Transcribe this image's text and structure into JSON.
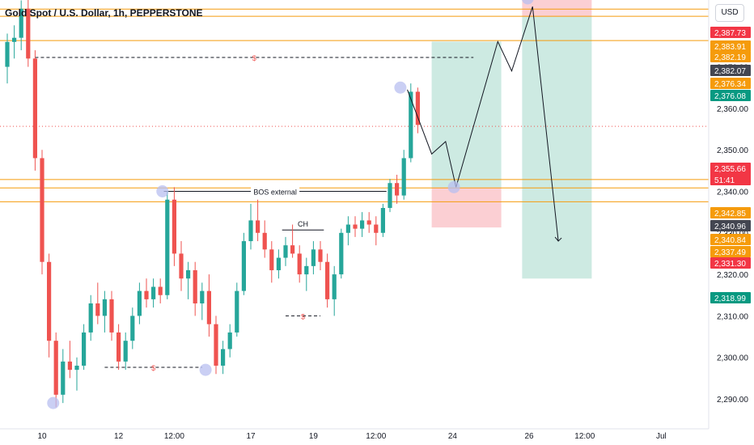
{
  "header": {
    "title": "Gold Spot / U.S. Dollar, 1h, PEPPERSTONE",
    "currency": "USD"
  },
  "colors": {
    "up": "#26a69a",
    "down": "#ef5350",
    "level": "#f59b0c",
    "target_fill": "#9bd5c6",
    "stop_fill": "#f7a8ae",
    "marker": "#b8bff0",
    "tag_red": "#f23645",
    "tag_orange": "#f59b0c",
    "tag_green": "#089981",
    "tag_dark": "#434651"
  },
  "chart_data": {
    "type": "candlestick",
    "y_ticks": [
      "2,290.00",
      "2,300.00",
      "2,310.00",
      "2,320.00",
      "2,330.00",
      "2,340.00",
      "2,350.00",
      "2,360.00",
      "2,370.00"
    ],
    "x_ticks": [
      "10",
      "12",
      "12:00",
      "17",
      "19",
      "12:00",
      "24",
      "26",
      "12:00",
      "Jul"
    ],
    "x_tick_slots": [
      5,
      16,
      24,
      35,
      44,
      53,
      64,
      75,
      83,
      94
    ],
    "price_tags": [
      {
        "label": "2,387.73",
        "price": 2387.73,
        "color": "red"
      },
      {
        "label": "2,383.91",
        "price": 2383.91,
        "color": "orange"
      },
      {
        "label": "2,382.19",
        "price": 2382.19,
        "color": "orange"
      },
      {
        "label": "2,382.07",
        "price": 2382.07,
        "color": "dark"
      },
      {
        "label": "2,376.34",
        "price": 2376.34,
        "color": "orange"
      },
      {
        "label": "2,376.08",
        "price": 2376.08,
        "color": "green"
      },
      {
        "label": "2,355.66",
        "sub": "51:41",
        "price": 2355.66,
        "color": "red"
      },
      {
        "label": "2,342.85",
        "price": 2342.85,
        "color": "orange"
      },
      {
        "label": "2,340.96",
        "price": 2340.96,
        "color": "dark"
      },
      {
        "label": "2,340.84",
        "price": 2340.84,
        "color": "orange"
      },
      {
        "label": "2,337.49",
        "price": 2337.49,
        "color": "orange"
      },
      {
        "label": "2,331.30",
        "price": 2331.3,
        "color": "red"
      },
      {
        "label": "2,318.99",
        "price": 2318.99,
        "color": "green"
      }
    ],
    "level_lines": [
      2383.91,
      2382.19,
      2376.34,
      2342.85,
      2340.84,
      2337.49
    ],
    "current_price": 2355.66,
    "annotations": {
      "bos": "BOS external",
      "ch": "CH",
      "liquidity": "$"
    },
    "candles": [
      [
        2370.0,
        2378.0,
        2366.0,
        2376.0
      ],
      [
        2376.0,
        2380.0,
        2372.0,
        2377.0
      ],
      [
        2377.0,
        2386.0,
        2374.0,
        2384.0
      ],
      [
        2384.0,
        2388.0,
        2370.0,
        2372.0
      ],
      [
        2372.0,
        2374.0,
        2345.0,
        2348.0
      ],
      [
        2348.0,
        2350.0,
        2320.0,
        2323.0
      ],
      [
        2323.0,
        2325.0,
        2300.0,
        2304.0
      ],
      [
        2304.0,
        2306.0,
        2288.0,
        2291.0
      ],
      [
        2291.0,
        2302.0,
        2289.0,
        2299.0
      ],
      [
        2299.0,
        2304.0,
        2295.0,
        2297.0
      ],
      [
        2297.0,
        2300.0,
        2292.0,
        2298.0
      ],
      [
        2298.0,
        2308.0,
        2297.0,
        2306.0
      ],
      [
        2306.0,
        2315.0,
        2304.0,
        2313.0
      ],
      [
        2313.0,
        2318.0,
        2308.0,
        2310.0
      ],
      [
        2310.0,
        2316.0,
        2306.0,
        2314.0
      ],
      [
        2314.0,
        2316.0,
        2304.0,
        2306.0
      ],
      [
        2306.0,
        2308.0,
        2297.0,
        2299.0
      ],
      [
        2299.0,
        2306.0,
        2297.0,
        2304.0
      ],
      [
        2304.0,
        2312.0,
        2302.0,
        2310.0
      ],
      [
        2310.0,
        2318.0,
        2308.0,
        2316.0
      ],
      [
        2316.0,
        2319.0,
        2312.0,
        2314.0
      ],
      [
        2314.0,
        2319.0,
        2312.0,
        2317.0
      ],
      [
        2317.0,
        2319.0,
        2313.0,
        2315.0
      ],
      [
        2315.0,
        2340.0,
        2314.0,
        2338.0
      ],
      [
        2338.0,
        2341.0,
        2322.0,
        2325.0
      ],
      [
        2325.0,
        2328.0,
        2316.0,
        2319.0
      ],
      [
        2319.0,
        2323.0,
        2314.0,
        2321.0
      ],
      [
        2321.0,
        2323.0,
        2310.0,
        2313.0
      ],
      [
        2313.0,
        2318.0,
        2309.0,
        2316.0
      ],
      [
        2316.0,
        2320.0,
        2305.0,
        2308.0
      ],
      [
        2308.0,
        2310.0,
        2296.0,
        2298.0
      ],
      [
        2298.0,
        2304.0,
        2296.0,
        2302.0
      ],
      [
        2302.0,
        2308.0,
        2300.0,
        2306.0
      ],
      [
        2306.0,
        2318.0,
        2305.0,
        2316.0
      ],
      [
        2316.0,
        2330.0,
        2315.0,
        2328.0
      ],
      [
        2328.0,
        2337.0,
        2326.0,
        2333.0
      ],
      [
        2333.0,
        2338.0,
        2328.0,
        2330.0
      ],
      [
        2330.0,
        2333.0,
        2324.0,
        2326.0
      ],
      [
        2326.0,
        2328.0,
        2318.0,
        2321.0
      ],
      [
        2321.0,
        2326.0,
        2319.0,
        2324.0
      ],
      [
        2324.0,
        2329.0,
        2322.0,
        2327.0
      ],
      [
        2327.0,
        2332.0,
        2324.0,
        2325.0
      ],
      [
        2325.0,
        2327.0,
        2318.0,
        2320.0
      ],
      [
        2320.0,
        2324.0,
        2316.0,
        2322.0
      ],
      [
        2322.0,
        2328.0,
        2320.0,
        2326.0
      ],
      [
        2326.0,
        2328.0,
        2321.0,
        2323.0
      ],
      [
        2323.0,
        2325.0,
        2312.0,
        2314.0
      ],
      [
        2314.0,
        2322.0,
        2310.0,
        2320.0
      ],
      [
        2320.0,
        2331.0,
        2319.0,
        2330.0
      ],
      [
        2330.0,
        2334.0,
        2327.0,
        2332.0
      ],
      [
        2332.0,
        2334.0,
        2329.0,
        2331.0
      ],
      [
        2331.0,
        2335.0,
        2329.0,
        2333.0
      ],
      [
        2333.0,
        2335.0,
        2330.0,
        2332.0
      ],
      [
        2332.0,
        2334.0,
        2327.0,
        2330.0
      ],
      [
        2330.0,
        2337.0,
        2329.0,
        2336.0
      ],
      [
        2336.0,
        2343.0,
        2335.0,
        2342.0
      ],
      [
        2342.0,
        2344.0,
        2337.0,
        2339.0
      ],
      [
        2339.0,
        2350.0,
        2338.0,
        2348.0
      ],
      [
        2348.0,
        2366.0,
        2347.0,
        2364.0
      ],
      [
        2364.0,
        2365.0,
        2354.0,
        2356.0
      ]
    ],
    "trade_boxes": [
      {
        "name": "long",
        "entry": 2340.96,
        "target": 2376.08,
        "stop": 2331.3
      },
      {
        "name": "short",
        "entry": 2382.07,
        "target": 2318.99,
        "stop": 2387.73
      }
    ],
    "projection_path": [
      [
        2364.5,
        2349.0
      ],
      [
        2352.0
      ],
      [
        2356.0
      ],
      [
        2341.0
      ],
      [
        2376.08
      ],
      [
        2369.0
      ],
      [
        2384.5
      ],
      [
        2328.0
      ]
    ],
    "markers": [
      2289.0,
      2340.0,
      2297.0,
      2365.0,
      2341.0,
      2386.5
    ]
  }
}
